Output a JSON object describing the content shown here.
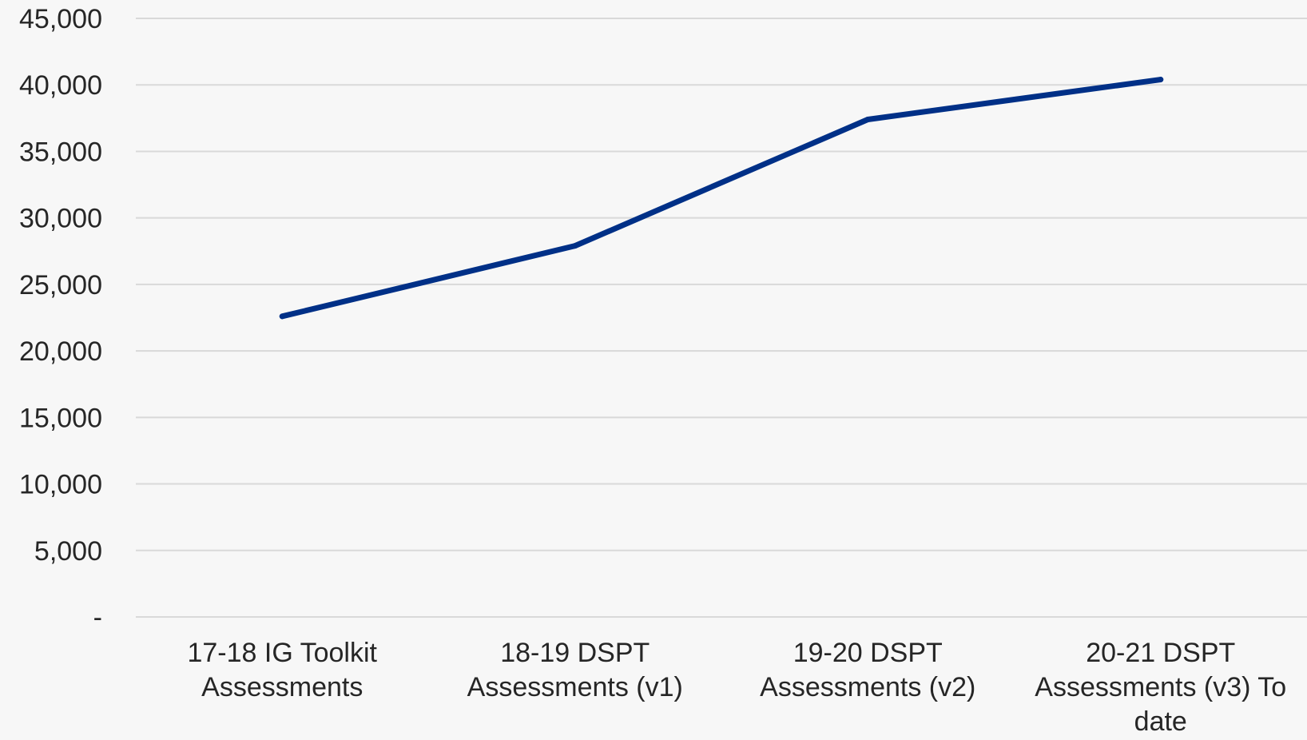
{
  "chart_data": {
    "type": "line",
    "title": "",
    "xlabel": "",
    "ylabel": "",
    "categories": [
      [
        "17-18 IG Toolkit",
        "Assessments"
      ],
      [
        "18-19 DSPT",
        "Assessments (v1)"
      ],
      [
        "19-20 DSPT",
        "Assessments (v2)"
      ],
      [
        "20-21 DSPT",
        "Assessments (v3) To",
        "date"
      ]
    ],
    "series": [
      {
        "values": [
          22600,
          27900,
          37400,
          40400
        ],
        "color": "#003087"
      }
    ],
    "ylim": [
      0,
      45000
    ],
    "y_ticks": [
      0,
      5000,
      10000,
      15000,
      20000,
      25000,
      30000,
      35000,
      40000,
      45000
    ],
    "y_tick_labels": [
      "-",
      "5,000",
      "10,000",
      "15,000",
      "20,000",
      "25,000",
      "30,000",
      "35,000",
      "40,000",
      "45,000"
    ],
    "grid": true,
    "legend": "none",
    "gridline_color": "#d9d9d9",
    "background_color": "#f7f7f7"
  }
}
